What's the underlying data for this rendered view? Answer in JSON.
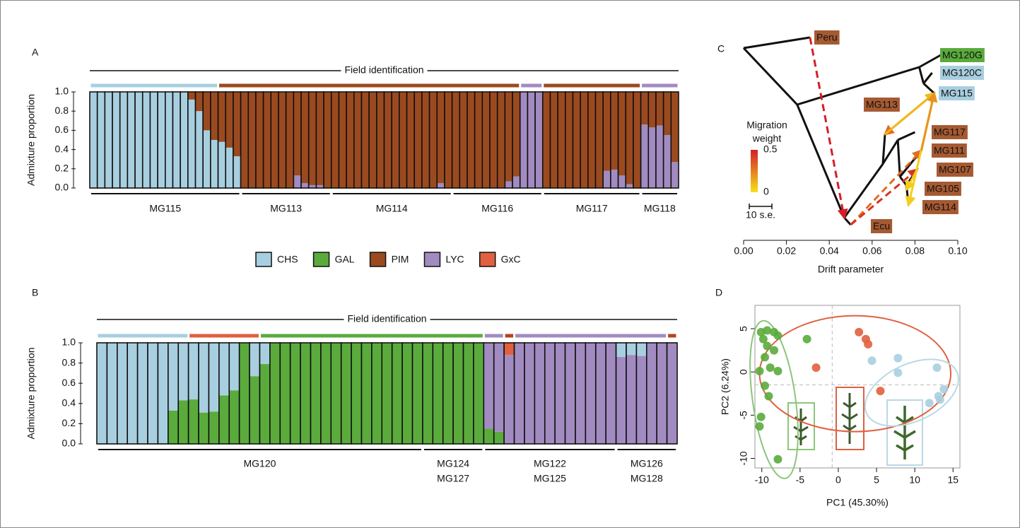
{
  "legend": [
    {
      "name": "CHS",
      "color": "#a8cfe0"
    },
    {
      "name": "GAL",
      "color": "#5aab3c"
    },
    {
      "name": "PIM",
      "color": "#9b4a1f"
    },
    {
      "name": "LYC",
      "color": "#a28bc1"
    },
    {
      "name": "GxC",
      "color": "#e0603f"
    }
  ],
  "chart_data": [
    {
      "type": "stacked-bar",
      "panel": "A",
      "ylabel": "Admixture proportion",
      "ylim": [
        0,
        1
      ],
      "yticks": [
        {
          "value": 0,
          "label": "0.0"
        },
        {
          "value": 0.2,
          "label": "0.2"
        },
        {
          "value": 0.4,
          "label": "0.4"
        },
        {
          "value": 0.6,
          "label": "0.6"
        },
        {
          "value": 0.8,
          "label": "0.8"
        },
        {
          "value": 1,
          "label": "1.0"
        }
      ],
      "field": {
        "title": "Field identification",
        "segments": [
          {
            "color": "#a8cfe0",
            "start": 0,
            "end": 16
          },
          {
            "color": "#9b4a1f",
            "start": 17,
            "end": 56
          },
          {
            "color": "#a28bc1",
            "start": 57,
            "end": 59
          },
          {
            "color": "#9b4a1f",
            "start": 60,
            "end": 72
          },
          {
            "color": "#a28bc1",
            "start": 73,
            "end": 77
          }
        ]
      },
      "groups": [
        {
          "labels": [
            "MG115"
          ],
          "start": 0,
          "end": 19
        },
        {
          "labels": [
            "MG113"
          ],
          "start": 20,
          "end": 31
        },
        {
          "labels": [
            "MG114"
          ],
          "start": 32,
          "end": 47
        },
        {
          "labels": [
            "MG116"
          ],
          "start": 48,
          "end": 59
        },
        {
          "labels": [
            "MG117"
          ],
          "start": 60,
          "end": 72
        },
        {
          "labels": [
            "MG118"
          ],
          "start": 73,
          "end": 77
        }
      ],
      "series": [
        {
          "name": "CHS",
          "color": "#a8cfe0",
          "values": [
            1,
            1,
            1,
            1,
            1,
            1,
            1,
            1,
            1,
            1,
            1,
            1,
            1,
            0.92,
            0.8,
            0.6,
            0.5,
            0.48,
            0.42,
            0.33,
            0,
            0,
            0,
            0,
            0,
            0,
            0,
            0,
            0,
            0,
            0,
            0,
            0,
            0,
            0,
            0,
            0,
            0,
            0,
            0,
            0,
            0,
            0,
            0,
            0,
            0,
            0,
            0,
            0,
            0,
            0,
            0,
            0,
            0,
            0,
            0,
            0,
            0,
            0,
            0,
            0,
            0,
            0,
            0,
            0,
            0,
            0,
            0,
            0,
            0,
            0,
            0,
            0,
            0,
            0,
            0,
            0,
            0
          ]
        },
        {
          "name": "LYC",
          "color": "#a28bc1",
          "values": [
            0,
            0,
            0,
            0,
            0,
            0,
            0,
            0,
            0,
            0,
            0,
            0,
            0,
            0,
            0,
            0,
            0,
            0,
            0,
            0,
            0,
            0,
            0,
            0,
            0,
            0,
            0,
            0.13,
            0.05,
            0.03,
            0.03,
            0,
            0,
            0,
            0,
            0,
            0,
            0,
            0,
            0,
            0,
            0,
            0,
            0,
            0,
            0,
            0.05,
            0,
            0,
            0,
            0,
            0,
            0,
            0,
            0,
            0.07,
            0.12,
            1,
            1,
            1,
            0,
            0,
            0,
            0,
            0,
            0,
            0,
            0,
            0.18,
            0.19,
            0.13,
            0.04,
            0,
            0.66,
            0.63,
            0.65,
            0.55,
            0.27
          ]
        },
        {
          "name": "PIM",
          "color": "#9b4a1f",
          "values": [
            0,
            0,
            0,
            0,
            0,
            0,
            0,
            0,
            0,
            0,
            0,
            0,
            0,
            0.08,
            0.2,
            0.4,
            0.5,
            0.52,
            0.58,
            0.67,
            1,
            1,
            1,
            1,
            1,
            1,
            1,
            0.87,
            0.95,
            0.97,
            0.97,
            1,
            1,
            1,
            1,
            1,
            1,
            1,
            1,
            1,
            1,
            1,
            1,
            1,
            1,
            1,
            0.95,
            1,
            1,
            1,
            1,
            1,
            1,
            1,
            1,
            0.93,
            0.88,
            0,
            0,
            0,
            1,
            1,
            1,
            1,
            1,
            1,
            1,
            1,
            0.82,
            0.81,
            0.87,
            0.96,
            1,
            0.34,
            0.37,
            0.35,
            0.45,
            0.73
          ]
        }
      ]
    },
    {
      "type": "stacked-bar",
      "panel": "B",
      "ylabel": "Admixture proportion",
      "ylim": [
        0,
        1
      ],
      "yticks": [
        {
          "value": 0,
          "label": "0.0"
        },
        {
          "value": 0.2,
          "label": "0.2"
        },
        {
          "value": 0.4,
          "label": "0.4"
        },
        {
          "value": 0.6,
          "label": "0.6"
        },
        {
          "value": 0.8,
          "label": "0.8"
        },
        {
          "value": 1,
          "label": "1.0"
        }
      ],
      "field": {
        "title": "Field identification",
        "segments": [
          {
            "color": "#a8cfe0",
            "start": 0,
            "end": 8
          },
          {
            "color": "#e0603f",
            "start": 9,
            "end": 15
          },
          {
            "color": "#5aab3c",
            "start": 16,
            "end": 37
          },
          {
            "color": "#a28bc1",
            "start": 38,
            "end": 39
          },
          {
            "color": "#b4441f",
            "start": 40,
            "end": 40
          },
          {
            "color": "#a28bc1",
            "start": 41,
            "end": 55
          },
          {
            "color": "#b4441f",
            "start": 56,
            "end": 56
          }
        ]
      },
      "groups": [
        {
          "labels": [
            "MG120"
          ],
          "start": 0,
          "end": 31
        },
        {
          "labels": [
            "MG124",
            "MG127"
          ],
          "start": 32,
          "end": 37
        },
        {
          "labels": [
            "MG122",
            "MG125"
          ],
          "start": 38,
          "end": 50
        },
        {
          "labels": [
            "MG126",
            "MG128"
          ],
          "start": 51,
          "end": 56
        }
      ],
      "series": [
        {
          "name": "GAL",
          "color": "#5aab3c",
          "values": [
            0,
            0,
            0,
            0,
            0,
            0,
            0,
            0.33,
            0.43,
            0.44,
            0.31,
            0.32,
            0.48,
            0.53,
            1,
            0.67,
            0.79,
            1,
            1,
            1,
            1,
            1,
            1,
            1,
            1,
            1,
            1,
            1,
            1,
            1,
            1,
            1,
            1,
            1,
            1,
            1,
            1,
            1,
            0.15,
            0.12,
            0,
            0,
            0,
            0,
            0,
            0,
            0,
            0,
            0,
            0,
            0,
            0,
            0,
            0,
            0,
            0,
            0
          ]
        },
        {
          "name": "LYC",
          "color": "#a28bc1",
          "values": [
            0,
            0,
            0,
            0,
            0,
            0,
            0,
            0,
            0,
            0,
            0,
            0,
            0,
            0,
            0,
            0,
            0,
            0,
            0,
            0,
            0,
            0,
            0,
            0,
            0,
            0,
            0,
            0,
            0,
            0,
            0,
            0,
            0,
            0,
            0,
            0,
            0,
            0,
            0.85,
            0.88,
            0.88,
            1,
            1,
            1,
            1,
            1,
            1,
            1,
            1,
            1,
            1,
            0.86,
            0.88,
            0.87,
            1,
            1,
            1
          ]
        },
        {
          "name": "CHS",
          "color": "#a8cfe0",
          "values": [
            1,
            1,
            1,
            1,
            1,
            1,
            1,
            0.67,
            0.57,
            0.56,
            0.69,
            0.68,
            0.52,
            0.47,
            0,
            0.33,
            0.21,
            0,
            0,
            0,
            0,
            0,
            0,
            0,
            0,
            0,
            0,
            0,
            0,
            0,
            0,
            0,
            0,
            0,
            0,
            0,
            0,
            0,
            0,
            0,
            0,
            0,
            0,
            0,
            0,
            0,
            0,
            0,
            0,
            0,
            0,
            0.14,
            0.12,
            0.13,
            0,
            0,
            0
          ]
        },
        {
          "name": "GxC",
          "color": "#e0603f",
          "values": [
            0,
            0,
            0,
            0,
            0,
            0,
            0,
            0,
            0,
            0,
            0,
            0,
            0,
            0,
            0,
            0,
            0,
            0,
            0,
            0,
            0,
            0,
            0,
            0,
            0,
            0,
            0,
            0,
            0,
            0,
            0,
            0,
            0,
            0,
            0,
            0,
            0,
            0,
            0,
            0,
            0.12,
            0,
            0,
            0,
            0,
            0,
            0,
            0,
            0,
            0,
            0,
            0,
            0,
            0,
            0,
            0,
            0
          ]
        }
      ]
    },
    {
      "type": "tree",
      "panel": "C",
      "xlabel": "Drift parameter",
      "xlim": [
        0,
        0.1
      ],
      "xticks": [
        {
          "value": 0,
          "label": "0.00"
        },
        {
          "value": 0.02,
          "label": "0.02"
        },
        {
          "value": 0.04,
          "label": "0.04"
        },
        {
          "value": 0.06,
          "label": "0.06"
        },
        {
          "value": 0.08,
          "label": "0.08"
        },
        {
          "value": 0.1,
          "label": "0.10"
        }
      ],
      "nodes": [
        {
          "x": 0
        },
        {
          "x": 0.031,
          "label": "Peru",
          "color": "#a65a32"
        },
        {
          "x": 0.025
        },
        {
          "x": 0.082
        },
        {
          "x": 0.092,
          "label": "MG120G",
          "color": "#5aab3c"
        },
        {
          "x": 0.084
        },
        {
          "x": 0.088,
          "label": "MG120C",
          "color": "#a8cfe0"
        },
        {
          "x": 0.089,
          "label": "MG115",
          "color": "#a8cfe0"
        },
        {
          "x": 0.047
        },
        {
          "x": 0.05,
          "label": "Ecu",
          "color": "#a65a32"
        },
        {
          "x": 0.065
        },
        {
          "x": 0.066,
          "label": "MG113",
          "color": "#a65a32"
        },
        {
          "x": 0.072
        },
        {
          "x": 0.08,
          "label": "MG117",
          "color": "#a65a32"
        },
        {
          "x": 0.073
        },
        {
          "x": 0.083,
          "label": "MG111",
          "color": "#a65a32"
        },
        {
          "x": 0.076
        },
        {
          "x": 0.081,
          "label": "MG107",
          "color": "#a65a32"
        },
        {
          "x": 0.076,
          "label": "MG105",
          "color": "#a65a32"
        },
        {
          "x": 0.077,
          "label": "MG114",
          "color": "#a65a32"
        }
      ],
      "edges": [
        [
          0,
          1
        ],
        [
          0,
          2
        ],
        [
          2,
          3
        ],
        [
          3,
          4
        ],
        [
          3,
          5
        ],
        [
          5,
          6
        ],
        [
          5,
          7
        ],
        [
          2,
          8
        ],
        [
          8,
          9
        ],
        [
          8,
          10
        ],
        [
          10,
          11
        ],
        [
          10,
          12
        ],
        [
          12,
          13
        ],
        [
          12,
          14
        ],
        [
          14,
          15
        ],
        [
          14,
          16
        ],
        [
          16,
          17
        ],
        [
          16,
          18
        ],
        [
          16,
          19
        ]
      ],
      "migrations": [
        {
          "from": 1,
          "to": 8,
          "weight": 0.5,
          "style": "dashed"
        },
        {
          "from": 9,
          "to": 15,
          "weight": 0.3,
          "style": "dashed"
        },
        {
          "from": 9,
          "to": 17,
          "weight": 0.45,
          "style": "dashed"
        },
        {
          "from": 7,
          "to": 11,
          "weight": 0.3,
          "style": "solid"
        },
        {
          "from": 7,
          "to": 19,
          "weight": 0.05,
          "style": "solid"
        },
        {
          "from": 11,
          "to": 7,
          "weight": 0.1,
          "style": "solid"
        },
        {
          "from": 15,
          "to": 7,
          "weight": 0.2,
          "style": "solid"
        },
        {
          "from": 17,
          "to": 18,
          "weight": 0.05,
          "style": "solid"
        }
      ],
      "migration_legend": {
        "title": [
          "Migration",
          "weight"
        ],
        "ticks": [
          0.5,
          0
        ],
        "low_color": "#f7e01a",
        "high_color": "#d41f26",
        "scale_bar": "10 s.e."
      }
    },
    {
      "type": "scatter",
      "panel": "D",
      "xlabel": "PC1 (45.30%)",
      "ylabel": "PC2 (6.24%)",
      "xlim": [
        -10.9,
        15.9
      ],
      "ylim": [
        -11.1,
        7.7
      ],
      "xticks": [
        -10,
        -5,
        0,
        5,
        10,
        15
      ],
      "yticks": [
        -10,
        -5,
        0,
        5
      ],
      "ref_x": -0.8,
      "ref_y": -1.5,
      "series": [
        {
          "color": "#5aab3c",
          "x": [
            -10.1,
            -9.3,
            -9.8,
            -8.4,
            -7.9,
            -9.3,
            -8.4,
            -9.6,
            -8.9,
            -10.3,
            -7.9,
            -9.6,
            -9.1,
            -10.1,
            -10.3,
            -7.9,
            -4.1
          ],
          "y": [
            4.6,
            4.8,
            3.8,
            4.6,
            4.2,
            3.0,
            2.5,
            1.7,
            0.5,
            0.1,
            0.1,
            -1.6,
            -2.8,
            -5.2,
            -6.3,
            -10.1,
            3.8
          ]
        },
        {
          "color": "#e0603f",
          "x": [
            -2.9,
            2.7,
            3.6,
            3.9,
            5.5
          ],
          "y": [
            0.5,
            4.6,
            3.8,
            3.2,
            -2.2
          ]
        },
        {
          "color": "#a8cfe0",
          "x": [
            4.4,
            7.8,
            7.8,
            12.9,
            13.8,
            13.3,
            11.9,
            13.1
          ],
          "y": [
            1.3,
            1.6,
            -0.1,
            0.5,
            -2.0,
            -3.2,
            -3.6,
            -2.8
          ]
        }
      ],
      "ellipses": [
        {
          "cx": -8.4,
          "cy": -3.2,
          "rx": 2.8,
          "ry": 9.2,
          "angle": -8,
          "color": "#8cc67a"
        },
        {
          "cx": 2.2,
          "cy": -0.2,
          "rx": 12.5,
          "ry": 6.7,
          "angle": 0,
          "color": "#e0603f"
        },
        {
          "cx": 9.6,
          "cy": -2.4,
          "rx": 6.5,
          "ry": 3.3,
          "angle": -25,
          "color": "#b8d8e6"
        }
      ]
    }
  ]
}
